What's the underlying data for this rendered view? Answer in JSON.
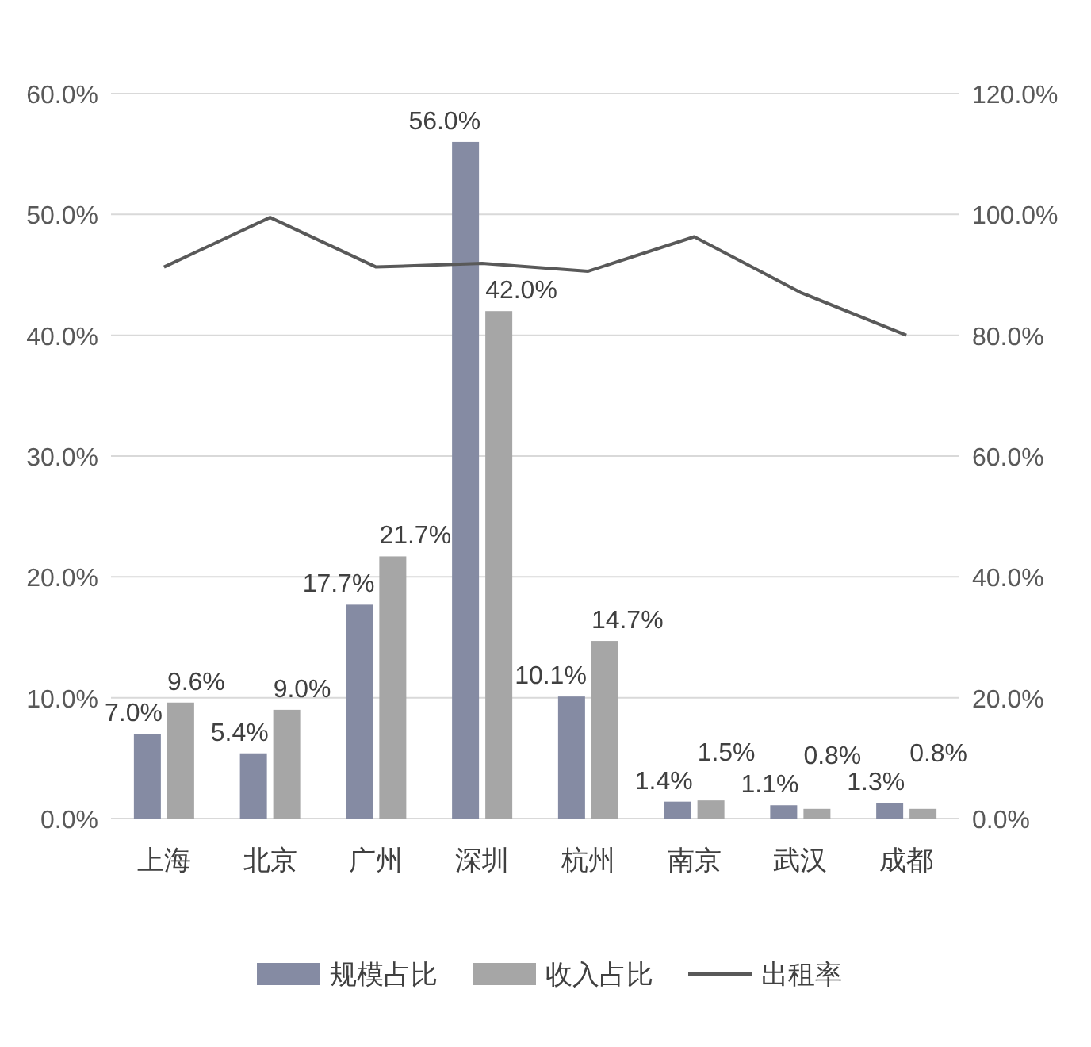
{
  "chart_data": {
    "type": "bar",
    "categories": [
      "上海",
      "北京",
      "广州",
      "深圳",
      "杭州",
      "南京",
      "武汉",
      "成都"
    ],
    "series": [
      {
        "name": "规模占比",
        "color": "#858ba3",
        "values": [
          7.0,
          5.4,
          17.7,
          56.0,
          10.1,
          1.4,
          1.1,
          1.3
        ],
        "value_labels": [
          "7.0%",
          "5.4%",
          "17.7%",
          "56.0%",
          "10.1%",
          "1.4%",
          "1.1%",
          "1.3%"
        ]
      },
      {
        "name": "收入占比",
        "color": "#a6a6a6",
        "values": [
          9.6,
          9.0,
          21.7,
          42.0,
          14.7,
          1.5,
          0.8,
          0.8
        ],
        "value_labels": [
          "9.6%",
          "9.0%",
          "21.7%",
          "42.0%",
          "14.7%",
          "1.5%",
          "0.8%",
          "0.8%"
        ]
      },
      {
        "name": "出租率",
        "type": "line",
        "axis": "y2",
        "color": "#595959",
        "values": [
          91.3,
          99.5,
          91.3,
          91.9,
          90.6,
          96.3,
          87.1,
          80.0
        ]
      }
    ],
    "ylim": [
      0,
      60
    ],
    "yticks": [
      {
        "value": 0,
        "label": "0.0%"
      },
      {
        "value": 10,
        "label": "10.0%"
      },
      {
        "value": 20,
        "label": "20.0%"
      },
      {
        "value": 30,
        "label": "30.0%"
      },
      {
        "value": 40,
        "label": "40.0%"
      },
      {
        "value": 50,
        "label": "50.0%"
      },
      {
        "value": 60,
        "label": "60.0%"
      }
    ],
    "y2lim": [
      0,
      120
    ],
    "y2ticks": [
      {
        "value": 0,
        "label": "0.0%"
      },
      {
        "value": 20,
        "label": "20.0%"
      },
      {
        "value": 40,
        "label": "40.0%"
      },
      {
        "value": 60,
        "label": "60.0%"
      },
      {
        "value": 80,
        "label": "80.0%"
      },
      {
        "value": 100,
        "label": "100.0%"
      },
      {
        "value": 120,
        "label": "120.0%"
      }
    ],
    "grid": "y",
    "legend": "bottom",
    "marker": "none",
    "line_style": "solid"
  }
}
